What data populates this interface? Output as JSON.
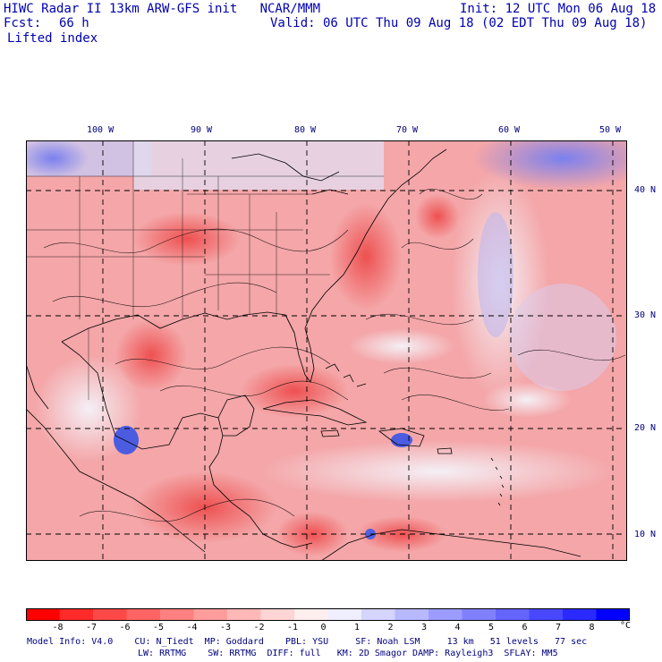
{
  "header": {
    "line1_left": "HIWC Radar II 13km ARW-GFS init   NCAR/MMM",
    "line1_right": "Init: 12 UTC Mon 06 Aug 18",
    "fcst_label": "Fcst:",
    "fcst_value": "66 h",
    "valid": "Valid: 06 UTC Thu 09 Aug 18 (02 EDT Thu 09 Aug 18)",
    "field": "Lifted index"
  },
  "map": {
    "lon_labels": [
      "100 W",
      "90 W",
      "80 W",
      "70 W",
      "60 W",
      "50 W"
    ],
    "lat_labels": [
      "40 N",
      "30 N",
      "20 N",
      "10 N"
    ],
    "colors": {
      "neg": "#e8202a",
      "pos": "#2020e0",
      "background_red": "#f6a8a8"
    }
  },
  "colorbar": {
    "labels": [
      "-8",
      "-7",
      "-6",
      "-5",
      "-4",
      "-3",
      "-2",
      "-1",
      "0",
      "1",
      "2",
      "3",
      "4",
      "5",
      "6",
      "7",
      "8"
    ],
    "unit": "°C",
    "colors": [
      "#ff0000",
      "#ff2a2a",
      "#ff4848",
      "#ff6464",
      "#ff8080",
      "#ff9c9c",
      "#ffb8b8",
      "#ffd4d4",
      "#ffeeee",
      "#eeeeff",
      "#d4d4ff",
      "#b8b8ff",
      "#9c9cff",
      "#8080ff",
      "#6464ff",
      "#4848ff",
      "#2a2aff",
      "#0000ff"
    ]
  },
  "footer": {
    "line1": "Model Info: V4.0    CU: N_Tiedt  MP: Goddard    PBL: YSU     SF: Noah LSM     13 km   51 levels   77 sec",
    "line2": "LW: RRTMG    SW: RRTMG  DIFF: full   KM: 2D Smagor DAMP: Rayleigh3  SFLAY: MM5"
  }
}
